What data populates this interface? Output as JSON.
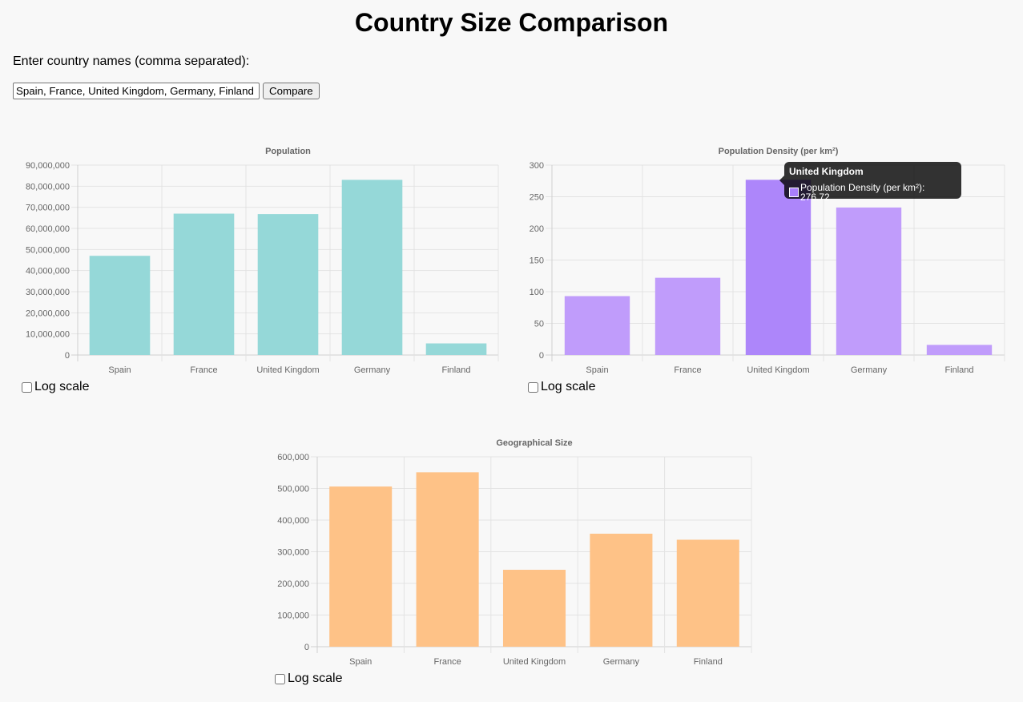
{
  "page": {
    "title": "Country Size Comparison",
    "prompt": "Enter country names (comma separated):",
    "input_value": "Spain, France, United Kingdom, Germany, Finland",
    "compare_label": "Compare",
    "logscale_label": "Log scale"
  },
  "tooltip": {
    "title": "United Kingdom",
    "label": "Population Density (per km²): 276.72",
    "swatch_color": "#a97ffa"
  },
  "chart_data": [
    {
      "type": "bar",
      "title": "Population",
      "categories": [
        "Spain",
        "France",
        "United Kingdom",
        "Germany",
        "Finland"
      ],
      "values": [
        47000000,
        67000000,
        66800000,
        83000000,
        5500000
      ],
      "ylim": [
        0,
        90000000
      ],
      "yticks": [
        "0",
        "10,000,000",
        "20,000,000",
        "30,000,000",
        "40,000,000",
        "50,000,000",
        "60,000,000",
        "70,000,000",
        "80,000,000",
        "90,000,000"
      ],
      "color": "#95d8d8",
      "grid": true,
      "log_scale": false
    },
    {
      "type": "bar",
      "title": "Population Density (per km²)",
      "categories": [
        "Spain",
        "France",
        "United Kingdom",
        "Germany",
        "Finland"
      ],
      "values": [
        93,
        122,
        276.72,
        233,
        16
      ],
      "ylim": [
        0,
        300
      ],
      "yticks": [
        "0",
        "50",
        "100",
        "150",
        "200",
        "250",
        "300"
      ],
      "color": "#c09cfb",
      "highlight_color": "#ad86fa",
      "highlight_index": 2,
      "grid": true,
      "log_scale": false
    },
    {
      "type": "bar",
      "title": "Geographical Size",
      "categories": [
        "Spain",
        "France",
        "United Kingdom",
        "Germany",
        "Finland"
      ],
      "values": [
        506000,
        551000,
        243000,
        357000,
        338000
      ],
      "ylim": [
        0,
        600000
      ],
      "yticks": [
        "0",
        "100,000",
        "200,000",
        "300,000",
        "400,000",
        "500,000",
        "600,000"
      ],
      "color": "#fec287",
      "grid": true,
      "log_scale": false
    }
  ]
}
